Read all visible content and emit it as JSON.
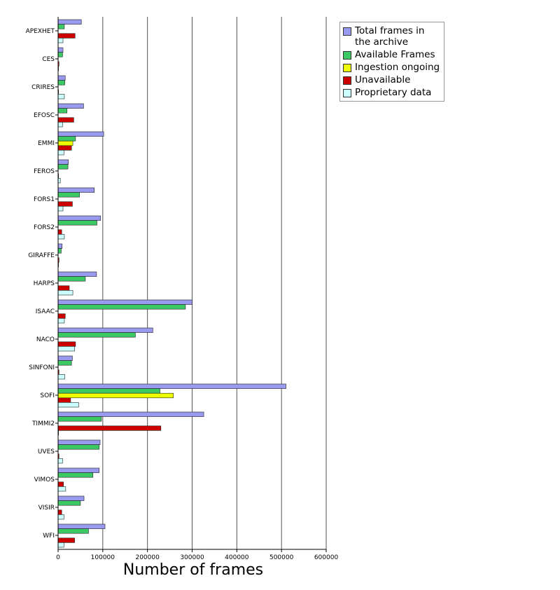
{
  "chart_data": {
    "type": "bar",
    "orientation": "horizontal",
    "xlabel": "Number of frames",
    "ylabel": "",
    "xlim": [
      0,
      600000
    ],
    "xticks": [
      0,
      100000,
      200000,
      300000,
      400000,
      500000,
      600000
    ],
    "xtick_labels": [
      "0",
      "100000",
      "200000",
      "300000",
      "400000",
      "500000",
      "600000"
    ],
    "grid": "vertical lines at x ticks",
    "legend_position": "top-right, outside plot",
    "categories": [
      "APEXHET",
      "CES",
      "CRIRES",
      "EFOSC",
      "EMMI",
      "FEROS",
      "FORS1",
      "FORS2",
      "GIRAFFE",
      "HARPS",
      "ISAAC",
      "NACO",
      "SINFONI",
      "SOFI",
      "TIMMI2",
      "UVES",
      "VIMOS",
      "VISIR",
      "WFI"
    ],
    "series": [
      {
        "name": "Total frames in the archive",
        "color": "#9999f0",
        "values": [
          52000,
          11000,
          16000,
          57000,
          102000,
          23000,
          81000,
          95000,
          9000,
          86000,
          300000,
          212000,
          32000,
          510000,
          326000,
          94000,
          92000,
          58000,
          105000
        ]
      },
      {
        "name": "Available Frames",
        "color": "#3cc864",
        "values": [
          14000,
          10000,
          15000,
          20000,
          39000,
          22000,
          48000,
          87000,
          7000,
          61000,
          285000,
          173000,
          30000,
          228000,
          97000,
          92000,
          78000,
          50000,
          68000
        ]
      },
      {
        "name": "Ingestion ongoing",
        "color": "#eeff00",
        "values": [
          0,
          0,
          0,
          0,
          33000,
          0,
          0,
          0,
          0,
          0,
          0,
          0,
          0,
          258000,
          0,
          0,
          0,
          0,
          0
        ]
      },
      {
        "name": "Unavailable",
        "color": "#cc0000",
        "values": [
          38000,
          2000,
          1000,
          35000,
          30000,
          1000,
          32000,
          8000,
          2000,
          25000,
          16000,
          39000,
          2000,
          28000,
          230000,
          2000,
          12000,
          8000,
          37000
        ]
      },
      {
        "name": "Proprietary data",
        "color": "#ccffff",
        "values": [
          11000,
          1000,
          14000,
          10000,
          13000,
          5000,
          11000,
          14000,
          1000,
          33000,
          14000,
          37000,
          15000,
          46000,
          1000,
          10000,
          17000,
          13000,
          13000
        ]
      }
    ]
  }
}
